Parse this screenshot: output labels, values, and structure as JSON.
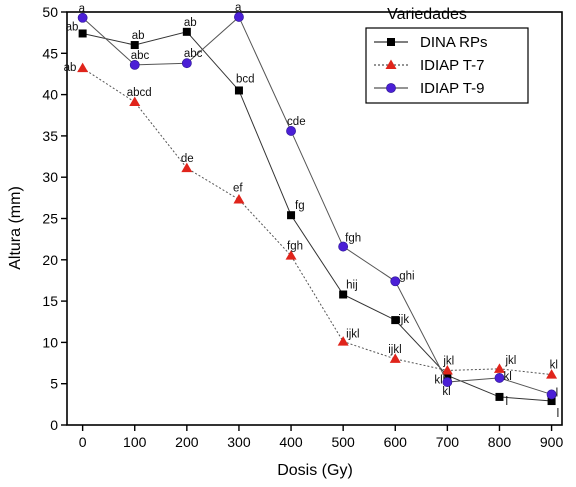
{
  "chart_data": {
    "type": "line",
    "xlabel": "Dosis (Gy)",
    "ylabel": "Altura (mm)",
    "xlim": [
      -30,
      920
    ],
    "ylim": [
      0,
      50
    ],
    "x_ticks": [
      0,
      100,
      200,
      300,
      400,
      500,
      600,
      700,
      800,
      900
    ],
    "y_ticks": [
      0,
      5,
      10,
      15,
      20,
      25,
      30,
      35,
      40,
      45,
      50
    ],
    "x_tick_labels": [
      "0",
      "100",
      "200",
      "300",
      "400",
      "500",
      "600",
      "700",
      "800",
      "900"
    ],
    "y_tick_labels": [
      "0",
      "5",
      "10",
      "15",
      "20",
      "25",
      "30",
      "35",
      "40",
      "45",
      "50"
    ],
    "grid": false,
    "legend": {
      "title": "Variedades",
      "placement": "top-right"
    },
    "x": [
      0,
      100,
      200,
      300,
      400,
      500,
      600,
      700,
      800,
      900
    ],
    "series": [
      {
        "name": "DINA RPs",
        "marker": "square",
        "color": "#000000",
        "values": [
          47.4,
          46.0,
          47.6,
          40.5,
          25.4,
          15.8,
          12.7,
          6.0,
          3.4,
          2.9
        ],
        "labels": [
          "ab",
          "ab",
          "ab",
          "bcd",
          "fg",
          "hij",
          "ijk",
          "kl",
          "l",
          "l"
        ]
      },
      {
        "name": "IDIAP T-7",
        "marker": "triangle",
        "color": "#e0241b",
        "values": [
          43.2,
          39.1,
          31.1,
          27.3,
          20.5,
          10.1,
          8.0,
          6.6,
          6.8,
          6.1
        ],
        "labels": [
          "ab",
          "abcd",
          "de",
          "ef",
          "fgh",
          "ijkl",
          "ijkl",
          "jkl",
          "jkl",
          "kl"
        ]
      },
      {
        "name": "IDIAP T-9",
        "marker": "circle",
        "color": "#4b1fd6",
        "values": [
          49.3,
          43.6,
          43.8,
          49.4,
          35.6,
          21.6,
          17.4,
          5.2,
          5.7,
          3.7
        ],
        "labels": [
          "a",
          "abc",
          "abc",
          "a",
          "cde",
          "fgh",
          "ghi",
          "kl",
          "kl",
          "l"
        ]
      }
    ]
  }
}
